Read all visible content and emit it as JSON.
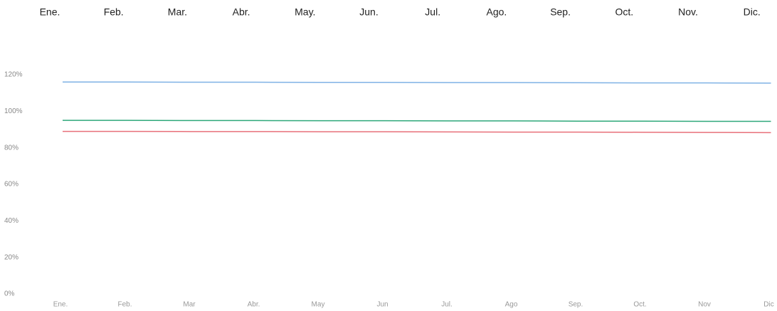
{
  "chart_data": {
    "type": "line",
    "top_labels": [
      "Ene.",
      "Feb.",
      "Mar.",
      "Abr.",
      "May.",
      "Jun.",
      "Jul.",
      "Ago.",
      "Sep.",
      "Oct.",
      "Nov.",
      "Dic."
    ],
    "categories": [
      "Ene.",
      "Feb.",
      "Mar",
      "Abr.",
      "May",
      "Jun",
      "Jul.",
      "Ago",
      "Sep.",
      "Oct.",
      "Nov",
      "Dic"
    ],
    "series": [
      {
        "color": "#7fb2e5",
        "values": [
          116,
          116,
          115.9,
          115.9,
          115.8,
          115.8,
          115.7,
          115.7,
          115.6,
          115.5,
          115.5,
          115.4
        ]
      },
      {
        "color": "#2ea87a",
        "values": [
          95,
          95,
          94.9,
          94.9,
          94.8,
          94.8,
          94.7,
          94.7,
          94.6,
          94.6,
          94.5,
          94.5
        ]
      },
      {
        "color": "#e8707a",
        "values": [
          89,
          89,
          88.9,
          88.9,
          88.8,
          88.8,
          88.7,
          88.6,
          88.6,
          88.5,
          88.4,
          88.3
        ]
      }
    ],
    "ylim": [
      0,
      120
    ],
    "yticks": [
      {
        "value": 0,
        "label": "0%"
      },
      {
        "value": 20,
        "label": "20%"
      },
      {
        "value": 40,
        "label": "40%"
      },
      {
        "value": 60,
        "label": "60%"
      },
      {
        "value": 80,
        "label": "80%"
      },
      {
        "value": 100,
        "label": "100%"
      },
      {
        "value": 120,
        "label": "120%"
      }
    ],
    "grid": false
  }
}
